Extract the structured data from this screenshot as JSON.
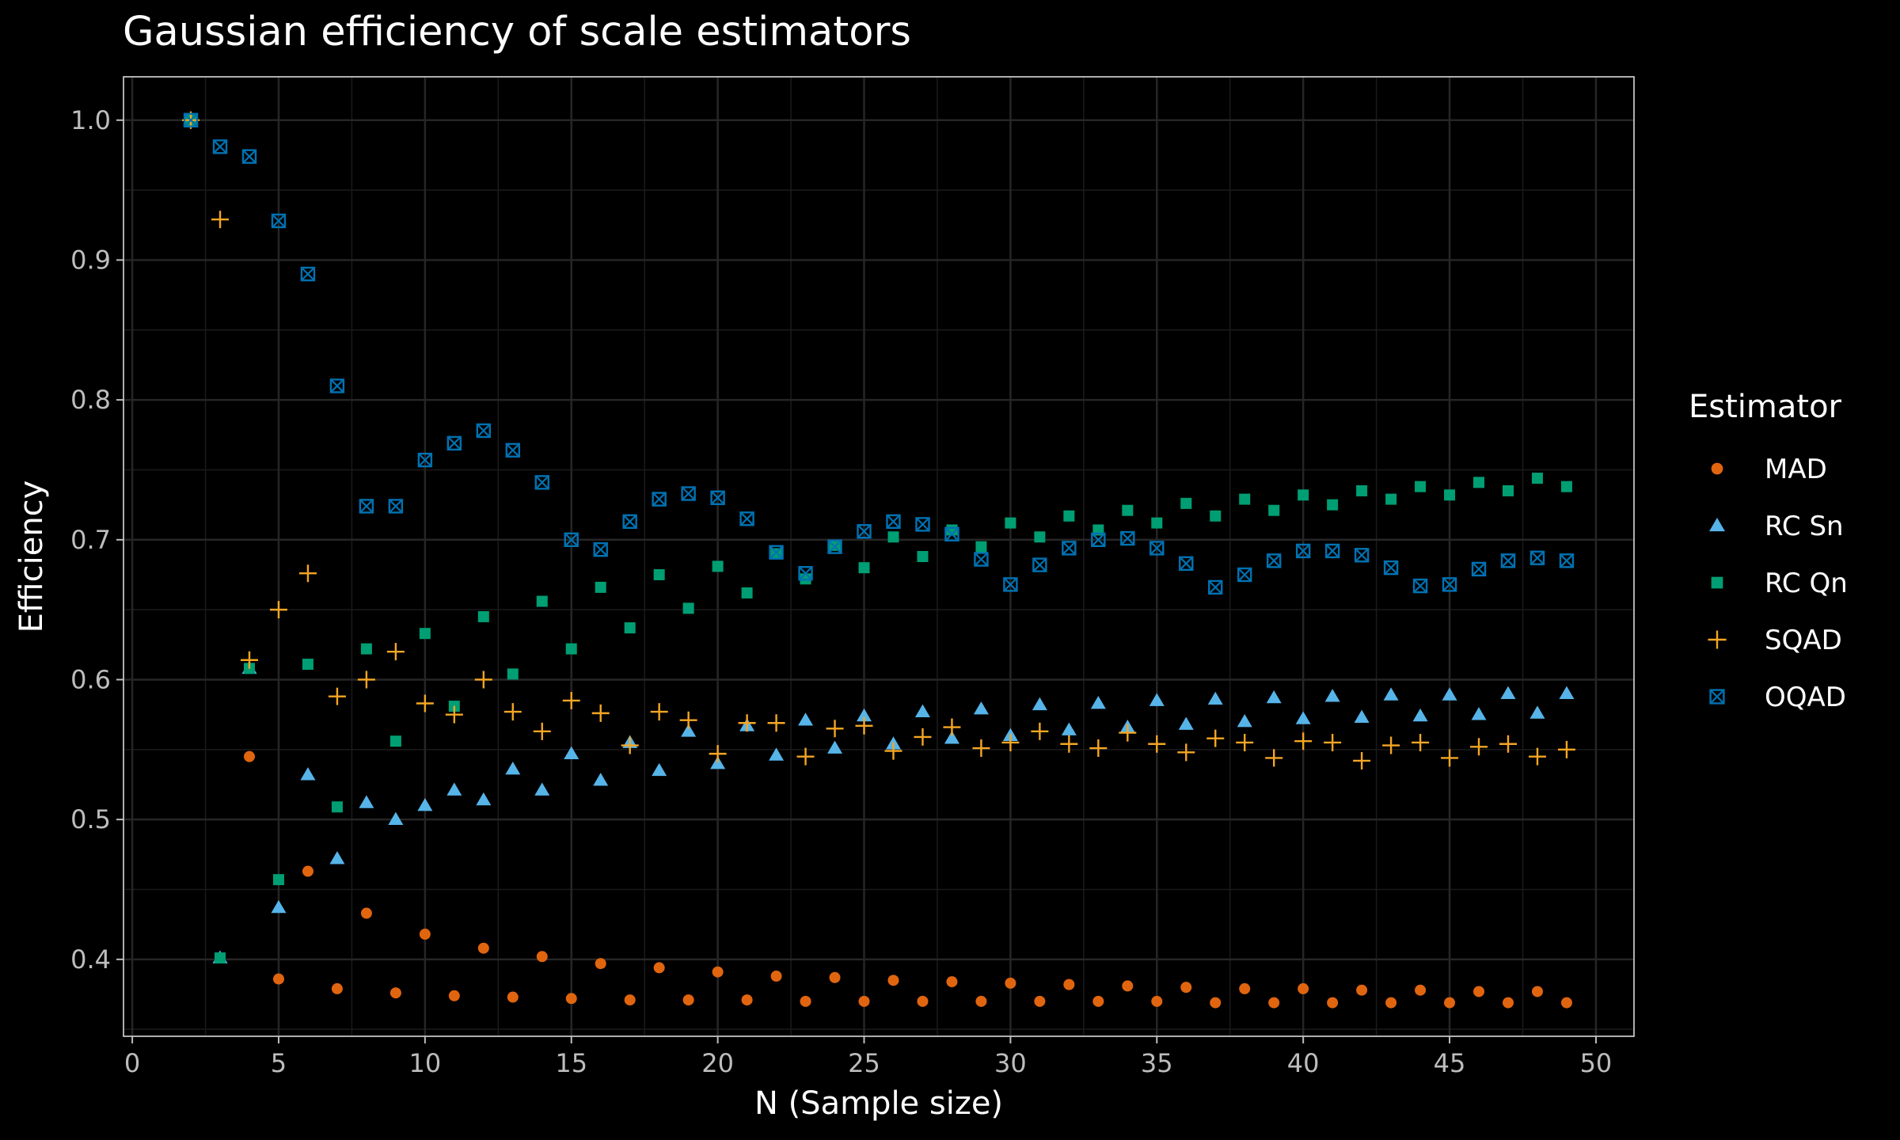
{
  "chart_data": {
    "type": "scatter",
    "title": "Gaussian efficiency of scale estimators",
    "xlabel": "N (Sample size)",
    "ylabel": "Efficiency",
    "xlim": [
      -0.3,
      51.3
    ],
    "ylim": [
      0.345,
      1.031
    ],
    "x_ticks": [
      "0",
      "5",
      "10",
      "15",
      "20",
      "25",
      "30",
      "35",
      "40",
      "45",
      "50"
    ],
    "y_ticks": [
      "0.4",
      "0.5",
      "0.6",
      "0.7",
      "0.8",
      "0.9",
      "1.0"
    ],
    "grid": true,
    "legend_title": "Estimator",
    "legend_position": "right",
    "x": [
      2,
      3,
      4,
      5,
      6,
      7,
      8,
      9,
      10,
      11,
      12,
      13,
      14,
      15,
      16,
      17,
      18,
      19,
      20,
      21,
      22,
      23,
      24,
      25,
      26,
      27,
      28,
      29,
      30,
      31,
      32,
      33,
      34,
      35,
      36,
      37,
      38,
      39,
      40,
      41,
      42,
      43,
      44,
      45,
      46,
      47,
      48,
      49
    ],
    "series": [
      {
        "name": "MAD",
        "color": "#E1650F",
        "shape": "circle",
        "values": [
          1.0,
          0.401,
          0.545,
          0.386,
          0.463,
          0.379,
          0.433,
          0.376,
          0.418,
          0.374,
          0.408,
          0.373,
          0.402,
          0.372,
          0.397,
          0.371,
          0.394,
          0.371,
          0.391,
          0.371,
          0.388,
          0.37,
          0.387,
          0.37,
          0.385,
          0.37,
          0.384,
          0.37,
          0.383,
          0.37,
          0.382,
          0.37,
          0.381,
          0.37,
          0.38,
          0.369,
          0.379,
          0.369,
          0.379,
          0.369,
          0.378,
          0.369,
          0.378,
          0.369,
          0.377,
          0.369,
          0.377,
          0.369
        ]
      },
      {
        "name": "RC Sn",
        "color": "#56B4E9",
        "shape": "triangle",
        "values": [
          1.0,
          0.401,
          0.608,
          0.437,
          0.532,
          0.472,
          0.512,
          0.5,
          0.51,
          0.521,
          0.514,
          0.536,
          0.521,
          0.547,
          0.528,
          0.555,
          0.535,
          0.563,
          0.54,
          0.567,
          0.546,
          0.571,
          0.551,
          0.574,
          0.554,
          0.577,
          0.558,
          0.579,
          0.56,
          0.582,
          0.564,
          0.583,
          0.566,
          0.585,
          0.568,
          0.586,
          0.57,
          0.587,
          0.572,
          0.588,
          0.573,
          0.589,
          0.574,
          0.589,
          0.575,
          0.59,
          0.576,
          0.59
        ]
      },
      {
        "name": "RC Qn",
        "color": "#009E73",
        "shape": "square",
        "values": [
          1.0,
          0.401,
          0.608,
          0.457,
          0.611,
          0.509,
          0.622,
          0.556,
          0.633,
          0.581,
          0.645,
          0.604,
          0.656,
          0.622,
          0.666,
          0.637,
          0.675,
          0.651,
          0.681,
          0.662,
          0.69,
          0.672,
          0.696,
          0.68,
          0.702,
          0.688,
          0.707,
          0.695,
          0.712,
          0.702,
          0.717,
          0.707,
          0.721,
          0.712,
          0.726,
          0.717,
          0.729,
          0.721,
          0.732,
          0.725,
          0.735,
          0.729,
          0.738,
          0.732,
          0.741,
          0.735,
          0.744,
          0.738
        ]
      },
      {
        "name": "SQAD",
        "color": "#F5A623",
        "shape": "plus",
        "values": [
          1.0,
          0.929,
          0.614,
          0.65,
          0.676,
          0.588,
          0.6,
          0.62,
          0.583,
          0.575,
          0.6,
          0.577,
          0.563,
          0.585,
          0.576,
          0.553,
          0.577,
          0.571,
          0.547,
          0.569,
          0.569,
          0.545,
          0.565,
          0.567,
          0.549,
          0.559,
          0.566,
          0.551,
          0.555,
          0.563,
          0.554,
          0.551,
          0.562,
          0.554,
          0.548,
          0.558,
          0.555,
          0.544,
          0.556,
          0.555,
          0.542,
          0.553,
          0.555,
          0.544,
          0.552,
          0.554,
          0.545,
          0.55
        ]
      },
      {
        "name": "OQAD",
        "color": "#0072B2",
        "shape": "boxed-x",
        "values": [
          1.0,
          0.981,
          0.974,
          0.928,
          0.89,
          0.81,
          0.724,
          0.724,
          0.757,
          0.769,
          0.778,
          0.764,
          0.741,
          0.7,
          0.693,
          0.713,
          0.729,
          0.733,
          0.73,
          0.715,
          0.691,
          0.676,
          0.695,
          0.706,
          0.713,
          0.711,
          0.704,
          0.686,
          0.668,
          0.682,
          0.694,
          0.7,
          0.701,
          0.694,
          0.683,
          0.666,
          0.675,
          0.685,
          0.692,
          0.692,
          0.689,
          0.68,
          0.667,
          0.668,
          0.679,
          0.685,
          0.687,
          0.685
        ]
      }
    ]
  }
}
